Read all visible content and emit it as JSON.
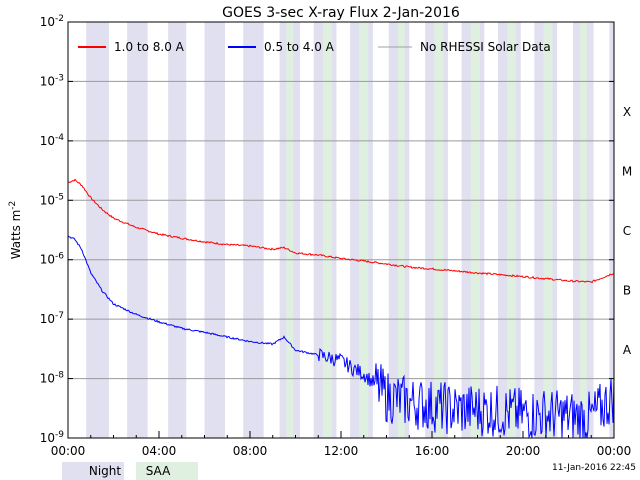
{
  "chart_data": {
    "type": "line",
    "title": "GOES 3-sec X-ray Flux     2-Jan-2016",
    "ylabel_main": "Watts m",
    "ylabel_sup": "-2",
    "x_ticks": [
      "00:00",
      "04:00",
      "08:00",
      "12:00",
      "16:00",
      "20:00",
      "00:00"
    ],
    "x_range_hours": [
      0,
      24
    ],
    "y_scale": "log",
    "y_range": [
      1e-09,
      0.01
    ],
    "y_ticks": [
      {
        "base": "10",
        "exp": "-2",
        "value": 0.01
      },
      {
        "base": "10",
        "exp": "-3",
        "value": 0.001
      },
      {
        "base": "10",
        "exp": "-4",
        "value": 0.0001
      },
      {
        "base": "10",
        "exp": "-5",
        "value": 1e-05
      },
      {
        "base": "10",
        "exp": "-6",
        "value": 1e-06
      },
      {
        "base": "10",
        "exp": "-7",
        "value": 1e-07
      },
      {
        "base": "10",
        "exp": "-8",
        "value": 1e-08
      },
      {
        "base": "10",
        "exp": "-9",
        "value": 1e-09
      }
    ],
    "flare_classes": [
      {
        "label": "X",
        "value": 0.0001
      },
      {
        "label": "M",
        "value": 1e-05
      },
      {
        "label": "C",
        "value": 1e-06
      },
      {
        "label": "B",
        "value": 1e-07
      },
      {
        "label": "A",
        "value": 1e-08
      }
    ],
    "grid": true,
    "legend_position": "top",
    "series": [
      {
        "name": "1.0 to 8.0 A",
        "color": "#ff0000",
        "x": [
          0,
          0.3,
          0.6,
          1.0,
          1.5,
          2.0,
          3.0,
          4.0,
          5.0,
          6.0,
          7.0,
          8.0,
          9.0,
          9.5,
          10.0,
          11.0,
          12.0,
          13.0,
          14.0,
          15.0,
          16.0,
          17.0,
          18.0,
          19.0,
          20.0,
          21.0,
          22.0,
          23.0,
          23.5,
          24.0
        ],
        "y": [
          2e-05,
          2.2e-05,
          1.8e-05,
          1.1e-05,
          7e-06,
          5e-06,
          3.5e-06,
          2.7e-06,
          2.3e-06,
          2e-06,
          1.8e-06,
          1.7e-06,
          1.5e-06,
          1.6e-06,
          1.3e-06,
          1.2e-06,
          1.05e-06,
          9.5e-07,
          8.5e-07,
          7.5e-07,
          7e-07,
          6.5e-07,
          6e-07,
          5.6e-07,
          5.2e-07,
          4.8e-07,
          4.4e-07,
          4.2e-07,
          5e-07,
          6e-07
        ]
      },
      {
        "name": "0.5 to 4.0 A",
        "color": "#0000ff",
        "x": [
          0,
          0.3,
          0.6,
          1.0,
          1.5,
          2.0,
          3.0,
          4.0,
          5.0,
          6.0,
          7.0,
          8.0,
          9.0,
          9.5,
          10.0,
          11.0,
          12.0,
          12.5,
          13.0,
          13.5,
          14.0,
          15.0,
          16.0,
          17.0,
          18.0,
          19.0,
          20.0,
          21.0,
          22.0,
          23.0,
          24.0
        ],
        "y": [
          2.5e-06,
          2.2e-06,
          1.5e-06,
          6e-07,
          3e-07,
          1.8e-07,
          1.2e-07,
          9e-08,
          7e-08,
          6e-08,
          5e-08,
          4.2e-08,
          3.8e-08,
          5e-08,
          3e-08,
          2.5e-08,
          2e-08,
          1.5e-08,
          1.2e-08,
          8e-09,
          5e-09,
          4e-09,
          3.5e-09,
          3e-09,
          3e-09,
          2.8e-09,
          2.5e-09,
          2.5e-09,
          2.3e-09,
          2.2e-09,
          5e-09
        ]
      },
      {
        "name": "No RHESSI Solar Data",
        "color": "#a0a0a0"
      }
    ],
    "night_intervals": [
      [
        0.8,
        1.8
      ],
      [
        2.6,
        3.5
      ],
      [
        4.4,
        5.2
      ],
      [
        6.0,
        6.9
      ],
      [
        7.7,
        8.6
      ],
      [
        9.3,
        10.2
      ],
      [
        10.8,
        11.8
      ],
      [
        12.4,
        13.4
      ],
      [
        14.1,
        15.0
      ],
      [
        15.7,
        16.7
      ],
      [
        17.3,
        18.3
      ],
      [
        18.9,
        19.9
      ],
      [
        20.5,
        21.5
      ],
      [
        22.2,
        23.1
      ],
      [
        23.8,
        24
      ]
    ],
    "saa_intervals": [
      [
        9.6,
        9.9
      ],
      [
        11.2,
        11.6
      ],
      [
        12.8,
        13.2
      ],
      [
        14.5,
        14.8
      ],
      [
        16.1,
        16.5
      ],
      [
        17.7,
        18.1
      ],
      [
        19.3,
        19.7
      ],
      [
        20.9,
        21.3
      ],
      [
        22.5,
        22.8
      ]
    ]
  },
  "footer": {
    "night_label": "Night",
    "saa_label": "SAA",
    "night_color": "#e0e0f0",
    "saa_color": "#e0f0e0",
    "timestamp": "11-Jan-2016 22:45"
  }
}
